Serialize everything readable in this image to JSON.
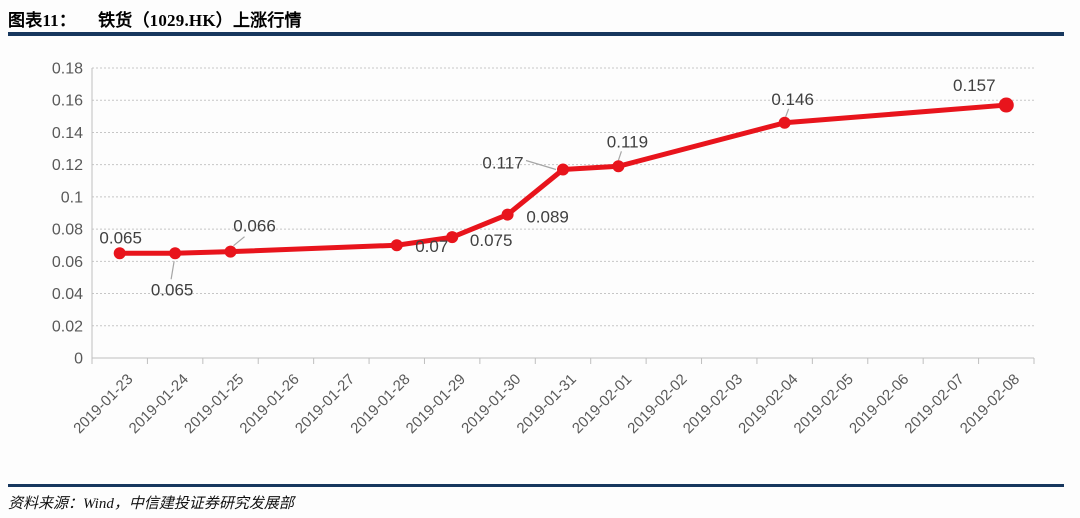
{
  "header": {
    "figure_label": "图表11：",
    "title": "铁货（1029.HK）上涨行情"
  },
  "footer": {
    "source": "资料来源：Wind，中信建投证券研究发展部"
  },
  "colors": {
    "accent_navy": "#17375e",
    "line_red": "#e8141c",
    "grid": "#c6c6c6",
    "axis": "#bfbfbf",
    "tick_text": "#595959",
    "data_label_text": "#404040",
    "leader": "#a6a6a6",
    "background": "#fdfdfd"
  },
  "chart_data": {
    "type": "line",
    "title": "铁货（1029.HK）上涨行情",
    "xlabel": "",
    "ylabel": "",
    "ylim": [
      0,
      0.18
    ],
    "ytick_step": 0.02,
    "ytick_labels": [
      "0",
      "0.02",
      "0.04",
      "0.06",
      "0.08",
      "0.1",
      "0.12",
      "0.14",
      "0.16",
      "0.18"
    ],
    "grid": "horizontal-dotted",
    "legend_position": "none",
    "categories": [
      "2019-01-23",
      "2019-01-24",
      "2019-01-25",
      "2019-01-26",
      "2019-01-27",
      "2019-01-28",
      "2019-01-29",
      "2019-01-30",
      "2019-01-31",
      "2019-02-01",
      "2019-02-02",
      "2019-02-03",
      "2019-02-04",
      "2019-02-05",
      "2019-02-06",
      "2019-02-07",
      "2019-02-08"
    ],
    "series": [
      {
        "name": "铁货（1029.HK）",
        "points": [
          {
            "category": "2019-01-23",
            "value": 0.065,
            "label": "0.065",
            "label_dx": 1,
            "label_dy": -10
          },
          {
            "category": "2019-01-24",
            "value": 0.065,
            "label": "0.065",
            "label_dx": -3,
            "label_dy": 42,
            "leader": [
              -1,
              8,
              -4,
              26
            ]
          },
          {
            "category": "2019-01-25",
            "value": 0.066,
            "label": "0.066",
            "label_dx": 24,
            "label_dy": -20,
            "leader": [
              14,
              -15,
              3,
              -6
            ]
          },
          {
            "category": "2019-01-28",
            "value": 0.07,
            "label": "0.07",
            "label_dx": 35,
            "label_dy": 7
          },
          {
            "category": "2019-01-29",
            "value": 0.075,
            "label": "0.075",
            "label_dx": 39,
            "label_dy": 9
          },
          {
            "category": "2019-01-30",
            "value": 0.089,
            "label": "0.089",
            "label_dx": 40,
            "label_dy": 8
          },
          {
            "category": "2019-01-31",
            "value": 0.117,
            "label": "0.117",
            "label_dx": -60,
            "label_dy": -1,
            "leader": [
              -37,
              -9,
              -7,
              0
            ]
          },
          {
            "category": "2019-02-01",
            "value": 0.119,
            "label": "0.119",
            "label_dx": 9,
            "label_dy": -19,
            "leader": [
              3,
              -15,
              0,
              -6
            ]
          },
          {
            "category": "2019-02-04",
            "value": 0.146,
            "label": "0.146",
            "label_dx": 8,
            "label_dy": -18,
            "leader": [
              4,
              -14,
              1,
              -6
            ]
          },
          {
            "category": "2019-02-08",
            "value": 0.157,
            "label": "0.157",
            "label_dx": -32,
            "label_dy": -14,
            "last": true
          }
        ]
      }
    ]
  }
}
